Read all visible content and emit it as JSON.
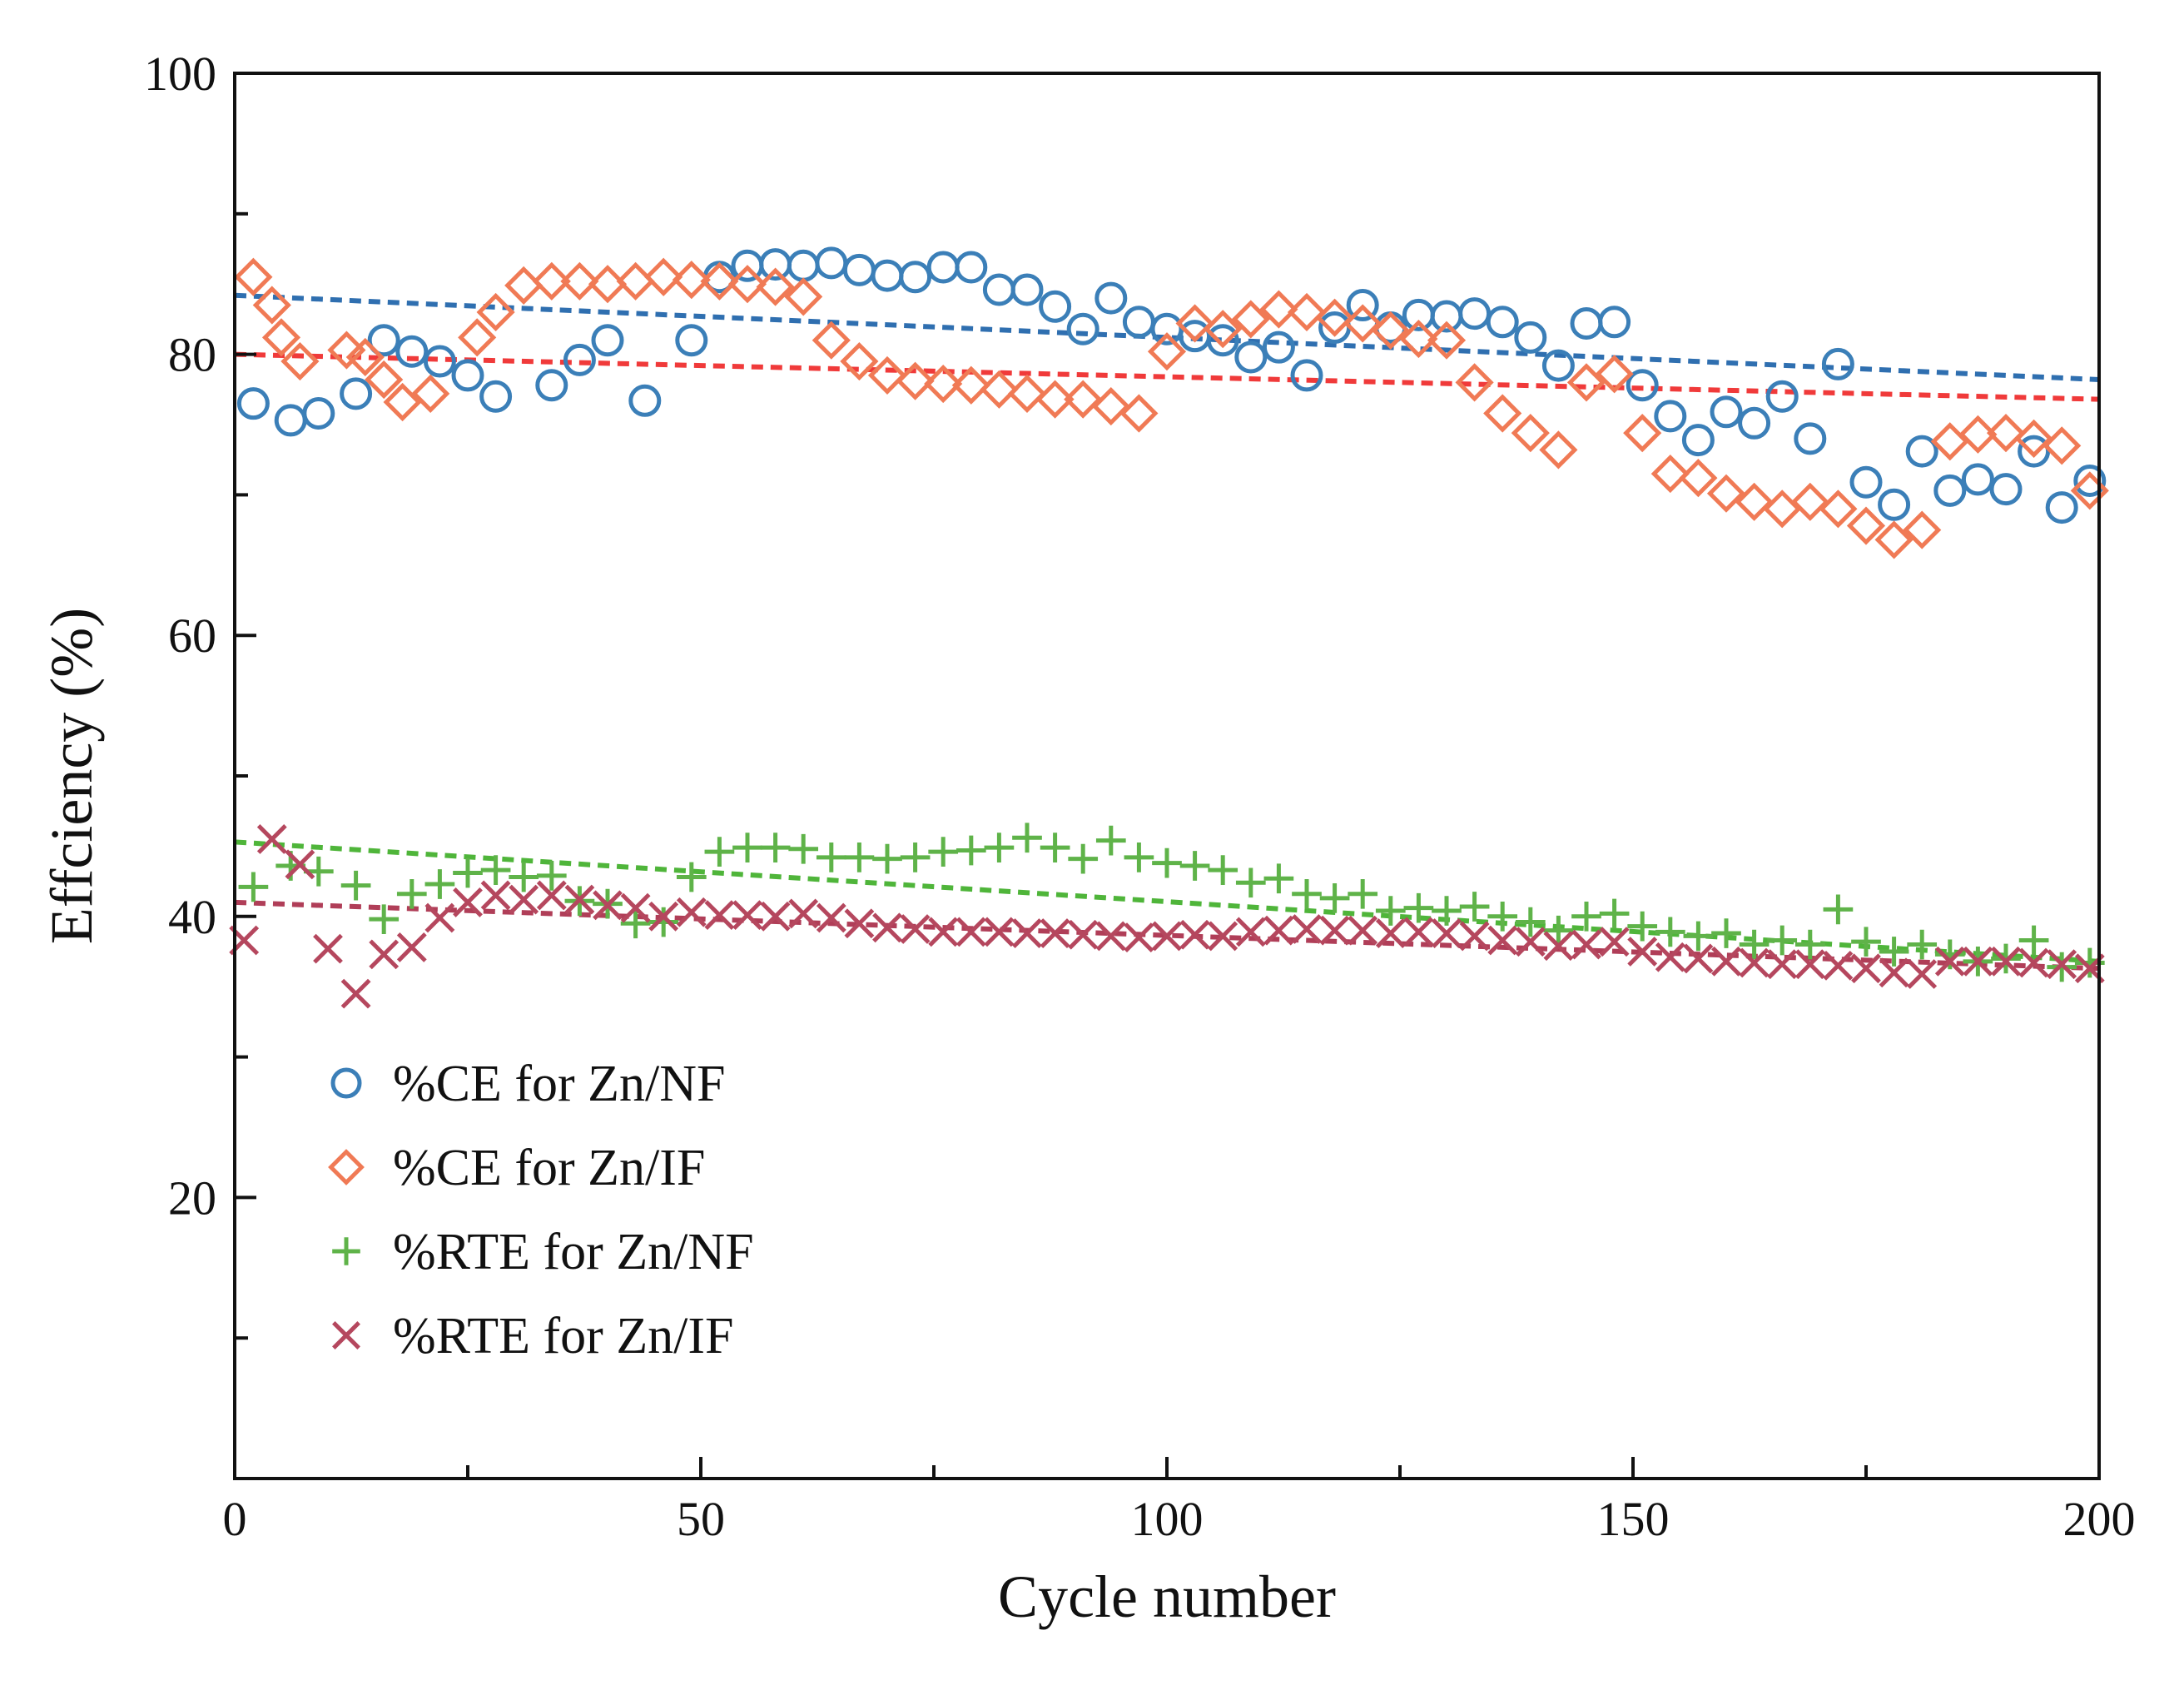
{
  "chart_data": {
    "type": "scatter",
    "title": "",
    "xlabel": "Cycle number",
    "ylabel": "Effciency (%)",
    "xlim": [
      0,
      200
    ],
    "ylim": [
      0,
      100
    ],
    "xticks": [
      0,
      50,
      100,
      150,
      200
    ],
    "xtick_labels": [
      "0",
      "50",
      "100",
      "150",
      "200"
    ],
    "yticks": [
      20,
      40,
      60,
      80,
      100
    ],
    "ytick_labels": [
      "20",
      "40",
      "60",
      "80",
      "100"
    ],
    "grid": false,
    "legend_position": "bottom-left",
    "series": [
      {
        "name": "%CE for Zn/NF",
        "marker": "circle",
        "color": "#3b7fb8",
        "trend_color": "#2f6fb0",
        "trend": [
          [
            0,
            84.2
          ],
          [
            200,
            78.2
          ]
        ],
        "points": [
          [
            2,
            76.5
          ],
          [
            6,
            75.3
          ],
          [
            9,
            75.8
          ],
          [
            13,
            77.2
          ],
          [
            16,
            81.0
          ],
          [
            19,
            80.2
          ],
          [
            22,
            79.5
          ],
          [
            25,
            78.5
          ],
          [
            28,
            77.0
          ],
          [
            34,
            77.8
          ],
          [
            37,
            79.6
          ],
          [
            40,
            81.0
          ],
          [
            44,
            76.7
          ],
          [
            49,
            81.0
          ],
          [
            52,
            85.5
          ],
          [
            55,
            86.3
          ],
          [
            58,
            86.4
          ],
          [
            61,
            86.3
          ],
          [
            64,
            86.5
          ],
          [
            67,
            86.0
          ],
          [
            70,
            85.6
          ],
          [
            73,
            85.5
          ],
          [
            76,
            86.2
          ],
          [
            79,
            86.2
          ],
          [
            82,
            84.6
          ],
          [
            85,
            84.6
          ],
          [
            88,
            83.4
          ],
          [
            91,
            81.8
          ],
          [
            94,
            84.0
          ],
          [
            97,
            82.3
          ],
          [
            100,
            81.8
          ],
          [
            103,
            81.3
          ],
          [
            106,
            81.0
          ],
          [
            109,
            79.8
          ],
          [
            112,
            80.5
          ],
          [
            115,
            78.5
          ],
          [
            118,
            81.9
          ],
          [
            121,
            83.5
          ],
          [
            124,
            81.9
          ],
          [
            127,
            82.8
          ],
          [
            130,
            82.7
          ],
          [
            133,
            82.9
          ],
          [
            136,
            82.3
          ],
          [
            139,
            81.2
          ],
          [
            142,
            79.2
          ],
          [
            145,
            82.2
          ],
          [
            148,
            82.3
          ],
          [
            151,
            77.8
          ],
          [
            154,
            75.6
          ],
          [
            157,
            73.9
          ],
          [
            160,
            75.9
          ],
          [
            163,
            75.1
          ],
          [
            166,
            77.0
          ],
          [
            169,
            74.0
          ],
          [
            172,
            79.3
          ],
          [
            175,
            70.9
          ],
          [
            178,
            69.3
          ],
          [
            181,
            73.1
          ],
          [
            184,
            70.3
          ],
          [
            187,
            71.1
          ],
          [
            190,
            70.4
          ],
          [
            193,
            73.1
          ],
          [
            196,
            69.1
          ],
          [
            199,
            71.0
          ]
        ]
      },
      {
        "name": "%CE for Zn/IF",
        "marker": "diamond",
        "color": "#f07a55",
        "trend_color": "#f03a3a",
        "trend": [
          [
            0,
            80.0
          ],
          [
            200,
            76.8
          ]
        ],
        "points": [
          [
            2,
            85.5
          ],
          [
            4,
            83.5
          ],
          [
            5,
            81.2
          ],
          [
            7,
            79.5
          ],
          [
            12,
            80.3
          ],
          [
            14,
            79.8
          ],
          [
            16,
            78.2
          ],
          [
            18,
            76.6
          ],
          [
            21,
            77.2
          ],
          [
            26,
            81.2
          ],
          [
            28,
            83.0
          ],
          [
            31,
            84.9
          ],
          [
            34,
            85.2
          ],
          [
            37,
            85.2
          ],
          [
            40,
            85.0
          ],
          [
            43,
            85.2
          ],
          [
            46,
            85.5
          ],
          [
            49,
            85.3
          ],
          [
            52,
            85.2
          ],
          [
            55,
            85.0
          ],
          [
            58,
            84.8
          ],
          [
            61,
            84.1
          ],
          [
            64,
            81.0
          ],
          [
            67,
            79.5
          ],
          [
            70,
            78.5
          ],
          [
            73,
            78.1
          ],
          [
            76,
            77.9
          ],
          [
            79,
            77.8
          ],
          [
            82,
            77.5
          ],
          [
            85,
            77.2
          ],
          [
            88,
            76.8
          ],
          [
            91,
            76.8
          ],
          [
            94,
            76.3
          ],
          [
            97,
            75.8
          ],
          [
            100,
            80.2
          ],
          [
            103,
            82.2
          ],
          [
            106,
            81.8
          ],
          [
            109,
            82.5
          ],
          [
            112,
            83.2
          ],
          [
            115,
            83.0
          ],
          [
            118,
            82.6
          ],
          [
            121,
            82.2
          ],
          [
            124,
            81.7
          ],
          [
            127,
            81.1
          ],
          [
            130,
            81.0
          ],
          [
            133,
            78.0
          ],
          [
            136,
            75.8
          ],
          [
            139,
            74.4
          ],
          [
            142,
            73.2
          ],
          [
            145,
            78.0
          ],
          [
            148,
            78.6
          ],
          [
            151,
            74.4
          ],
          [
            154,
            71.5
          ],
          [
            157,
            71.2
          ],
          [
            160,
            70.1
          ],
          [
            163,
            69.5
          ],
          [
            166,
            69.0
          ],
          [
            169,
            69.5
          ],
          [
            172,
            69.0
          ],
          [
            175,
            67.8
          ],
          [
            178,
            66.8
          ],
          [
            181,
            67.5
          ],
          [
            184,
            73.8
          ],
          [
            187,
            74.3
          ],
          [
            190,
            74.4
          ],
          [
            193,
            74.0
          ],
          [
            196,
            73.5
          ],
          [
            199,
            70.3
          ]
        ]
      },
      {
        "name": "%RTE for Zn/NF",
        "marker": "plus",
        "color": "#5fb349",
        "trend_color": "#4fb53a",
        "trend": [
          [
            0,
            45.3
          ],
          [
            200,
            36.8
          ]
        ],
        "points": [
          [
            2,
            42.1
          ],
          [
            6,
            43.6
          ],
          [
            9,
            43.2
          ],
          [
            13,
            42.2
          ],
          [
            16,
            39.8
          ],
          [
            19,
            41.6
          ],
          [
            22,
            42.3
          ],
          [
            25,
            43.1
          ],
          [
            28,
            43.3
          ],
          [
            31,
            42.8
          ],
          [
            34,
            42.9
          ],
          [
            37,
            41.1
          ],
          [
            40,
            40.9
          ],
          [
            43,
            39.5
          ],
          [
            46,
            39.6
          ],
          [
            49,
            42.8
          ],
          [
            52,
            44.6
          ],
          [
            55,
            44.9
          ],
          [
            58,
            44.9
          ],
          [
            61,
            44.8
          ],
          [
            64,
            44.2
          ],
          [
            67,
            44.2
          ],
          [
            70,
            44.1
          ],
          [
            73,
            44.2
          ],
          [
            76,
            44.6
          ],
          [
            79,
            44.7
          ],
          [
            82,
            44.9
          ],
          [
            85,
            45.6
          ],
          [
            88,
            44.9
          ],
          [
            91,
            44.1
          ],
          [
            94,
            45.4
          ],
          [
            97,
            44.2
          ],
          [
            100,
            43.8
          ],
          [
            103,
            43.6
          ],
          [
            106,
            43.3
          ],
          [
            109,
            42.4
          ],
          [
            112,
            42.7
          ],
          [
            115,
            41.6
          ],
          [
            118,
            41.3
          ],
          [
            121,
            41.6
          ],
          [
            124,
            40.4
          ],
          [
            127,
            40.6
          ],
          [
            130,
            40.4
          ],
          [
            133,
            40.7
          ],
          [
            136,
            40.0
          ],
          [
            139,
            39.6
          ],
          [
            142,
            39.0
          ],
          [
            145,
            40.0
          ],
          [
            148,
            40.2
          ],
          [
            151,
            39.3
          ],
          [
            154,
            38.9
          ],
          [
            157,
            38.6
          ],
          [
            160,
            38.8
          ],
          [
            163,
            38.0
          ],
          [
            166,
            38.3
          ],
          [
            169,
            38.0
          ],
          [
            172,
            40.5
          ],
          [
            175,
            38.2
          ],
          [
            178,
            37.5
          ],
          [
            181,
            38.0
          ],
          [
            184,
            37.3
          ],
          [
            187,
            36.8
          ],
          [
            190,
            37.0
          ],
          [
            193,
            38.3
          ],
          [
            196,
            36.4
          ],
          [
            199,
            36.7
          ]
        ]
      },
      {
        "name": "%RTE for Zn/IF",
        "marker": "cross",
        "color": "#b5475e",
        "trend_color": "#b03e58",
        "trend": [
          [
            0,
            41.0
          ],
          [
            200,
            36.3
          ]
        ],
        "points": [
          [
            1,
            38.3
          ],
          [
            4,
            45.5
          ],
          [
            7,
            43.7
          ],
          [
            10,
            37.7
          ],
          [
            13,
            34.5
          ],
          [
            16,
            37.3
          ],
          [
            19,
            37.8
          ],
          [
            22,
            39.9
          ],
          [
            25,
            41.0
          ],
          [
            28,
            41.5
          ],
          [
            31,
            41.2
          ],
          [
            34,
            41.5
          ],
          [
            37,
            41.2
          ],
          [
            40,
            40.8
          ],
          [
            43,
            40.6
          ],
          [
            46,
            40.0
          ],
          [
            49,
            40.3
          ],
          [
            52,
            40.1
          ],
          [
            55,
            40.1
          ],
          [
            58,
            40.0
          ],
          [
            61,
            40.2
          ],
          [
            64,
            39.9
          ],
          [
            67,
            39.5
          ],
          [
            70,
            39.2
          ],
          [
            73,
            39.1
          ],
          [
            76,
            38.9
          ],
          [
            79,
            38.9
          ],
          [
            82,
            38.9
          ],
          [
            85,
            38.8
          ],
          [
            88,
            38.8
          ],
          [
            91,
            38.7
          ],
          [
            94,
            38.6
          ],
          [
            97,
            38.5
          ],
          [
            100,
            38.6
          ],
          [
            103,
            38.7
          ],
          [
            106,
            38.6
          ],
          [
            109,
            38.9
          ],
          [
            112,
            39.0
          ],
          [
            115,
            39.1
          ],
          [
            118,
            39.0
          ],
          [
            121,
            39.0
          ],
          [
            124,
            38.8
          ],
          [
            127,
            38.9
          ],
          [
            130,
            38.8
          ],
          [
            133,
            38.6
          ],
          [
            136,
            38.3
          ],
          [
            139,
            38.2
          ],
          [
            142,
            37.9
          ],
          [
            145,
            38.0
          ],
          [
            148,
            38.2
          ],
          [
            151,
            37.5
          ],
          [
            154,
            37.1
          ],
          [
            157,
            37.0
          ],
          [
            160,
            36.8
          ],
          [
            163,
            36.7
          ],
          [
            166,
            36.6
          ],
          [
            169,
            36.6
          ],
          [
            172,
            36.5
          ],
          [
            175,
            36.3
          ],
          [
            178,
            36.0
          ],
          [
            181,
            35.9
          ],
          [
            184,
            36.8
          ],
          [
            187,
            36.8
          ],
          [
            190,
            36.8
          ],
          [
            193,
            36.7
          ],
          [
            196,
            36.6
          ],
          [
            199,
            36.3
          ]
        ]
      }
    ]
  }
}
